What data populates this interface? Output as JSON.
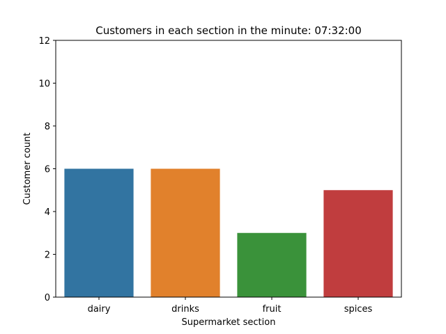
{
  "chart_data": {
    "type": "bar",
    "title": "Customers in each section in the minute: 07:32:00",
    "xlabel": "Supermarket section",
    "ylabel": "Customer count",
    "categories": [
      "dairy",
      "drinks",
      "fruit",
      "spices"
    ],
    "values": [
      6,
      6,
      3,
      5
    ],
    "colors": [
      "#3274a1",
      "#e1812c",
      "#3a923a",
      "#c03d3e"
    ],
    "ylim": [
      0,
      12
    ],
    "yticks": [
      0,
      2,
      4,
      6,
      8,
      10,
      12
    ],
    "grid": false,
    "legend": "none"
  }
}
